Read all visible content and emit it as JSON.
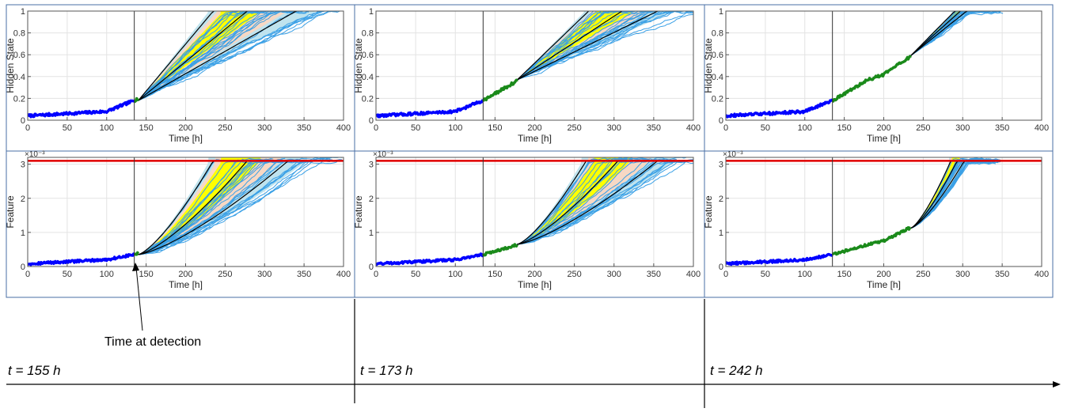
{
  "annotation": {
    "text": "Time at detection"
  },
  "timeline": [
    {
      "label": "t = 155 h"
    },
    {
      "label": "t = 173 h"
    },
    {
      "label": "t = 242 h"
    }
  ],
  "colors": {
    "history": "#0000ff",
    "filtered": "#1a8a1a",
    "trajectories": "#3aa0e6",
    "band_outer": "#bfe3ee",
    "band_mid": "#f7d8c4",
    "band_inner": "#ffff00",
    "percentile_line": "#000000",
    "threshold": "#e00000",
    "frame": "#4a6fa5"
  },
  "chart_data": [
    {
      "type": "line",
      "panel": "hidden-state-t155",
      "xlabel": "Time [h]",
      "ylabel": "Hidden State",
      "xlim": [
        0,
        400
      ],
      "ylim": [
        0,
        1
      ],
      "xticks": [
        "0",
        "50",
        "100",
        "150",
        "200",
        "250",
        "300",
        "350",
        "400"
      ],
      "yticks": [
        "0",
        "0.2",
        "0.4",
        "0.6",
        "0.8",
        "1"
      ],
      "grid": true,
      "detection_time": 135,
      "filtered_until": 140,
      "prediction_start": [
        140,
        0.18
      ],
      "percentile_lines_end_time_at_1": [
        235,
        278,
        340
      ]
    },
    {
      "type": "line",
      "panel": "hidden-state-t173",
      "xlabel": "Time [h]",
      "ylabel": "Hidden State",
      "xlim": [
        0,
        400
      ],
      "ylim": [
        0,
        1
      ],
      "xticks": [
        "0",
        "50",
        "100",
        "150",
        "200",
        "250",
        "300",
        "350",
        "400"
      ],
      "yticks": [
        "0",
        "0.2",
        "0.4",
        "0.6",
        "0.8",
        "1"
      ],
      "grid": true,
      "detection_time": 135,
      "filtered_until": 178,
      "prediction_start": [
        178,
        0.37
      ],
      "percentile_lines_end_time_at_1": [
        268,
        310,
        355
      ]
    },
    {
      "type": "line",
      "panel": "hidden-state-t242",
      "xlabel": "Time [h]",
      "ylabel": "Hidden State",
      "xlim": [
        0,
        400
      ],
      "ylim": [
        0,
        1
      ],
      "xticks": [
        "0",
        "50",
        "100",
        "150",
        "200",
        "250",
        "300",
        "350",
        "400"
      ],
      "yticks": [
        "0",
        "0.2",
        "0.4",
        "0.6",
        "0.8",
        "1"
      ],
      "grid": true,
      "detection_time": 135,
      "filtered_until": 234,
      "prediction_start": [
        234,
        0.59
      ],
      "percentile_lines_end_time_at_1": [
        290,
        297,
        305
      ]
    },
    {
      "type": "line",
      "panel": "feature-t155",
      "xlabel": "Time [h]",
      "ylabel": "Feature",
      "y_exponent": "×10⁻³",
      "xlim": [
        0,
        400
      ],
      "ylim": [
        0,
        3.2
      ],
      "threshold": 3.1,
      "xticks": [
        "0",
        "50",
        "100",
        "150",
        "200",
        "250",
        "300",
        "350",
        "400"
      ],
      "yticks": [
        "0",
        "1",
        "2",
        "3"
      ],
      "grid": true,
      "detection_time": 135,
      "filtered_until": 140,
      "prediction_start": [
        140,
        0.35
      ],
      "percentile_lines_end_time_at_threshold": [
        235,
        278,
        330
      ]
    },
    {
      "type": "line",
      "panel": "feature-t173",
      "xlabel": "Time [h]",
      "ylabel": "Feature",
      "y_exponent": "×10⁻³",
      "xlim": [
        0,
        400
      ],
      "ylim": [
        0,
        3.2
      ],
      "threshold": 3.1,
      "xticks": [
        "0",
        "50",
        "100",
        "150",
        "200",
        "250",
        "300",
        "350",
        "400"
      ],
      "yticks": [
        "0",
        "1",
        "2",
        "3"
      ],
      "grid": true,
      "detection_time": 135,
      "filtered_until": 178,
      "prediction_start": [
        178,
        0.65
      ],
      "percentile_lines_end_time_at_threshold": [
        265,
        305,
        355
      ]
    },
    {
      "type": "line",
      "panel": "feature-t242",
      "xlabel": "Time [h]",
      "ylabel": "Feature",
      "y_exponent": "×10⁻³",
      "xlim": [
        0,
        400
      ],
      "ylim": [
        0,
        3.2
      ],
      "threshold": 3.1,
      "xticks": [
        "0",
        "50",
        "100",
        "150",
        "200",
        "250",
        "300",
        "350",
        "400"
      ],
      "yticks": [
        "0",
        "1",
        "2",
        "3"
      ],
      "grid": true,
      "detection_time": 135,
      "filtered_until": 234,
      "prediction_start": [
        234,
        1.12
      ],
      "percentile_lines_end_time_at_threshold": [
        285,
        293,
        302
      ]
    }
  ]
}
